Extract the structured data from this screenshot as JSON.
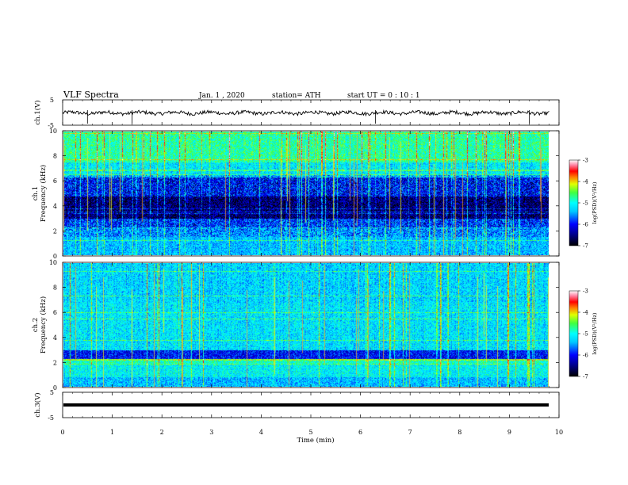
{
  "header": {
    "title": "VLF  Spectra",
    "date": "Jan.  1  , 2020",
    "station": "station= ATH",
    "start": "start  UT  =    0  : 10 : 1"
  },
  "chart_data": [
    {
      "type": "line",
      "panel": "ch1-waveform",
      "ylabel": "ch.1(V)",
      "yticks": [
        "5",
        "-5"
      ],
      "ylim": [
        -5,
        5
      ],
      "xlim": [
        0,
        10
      ],
      "data_extent_min": 9.8,
      "series": [
        {
          "values_note": "noise around 0 V, spikes near 0.5, 1.4, 6.3, 9.4 min",
          "mean": 0
        }
      ]
    },
    {
      "type": "heatmap",
      "panel": "ch1-spectrogram",
      "ylabel": "ch.1\nFrequency  (kHz)",
      "ylabel_lines": [
        "ch.1",
        "Frequency  (kHz)"
      ],
      "yticks": [
        "0",
        "2",
        "4",
        "6",
        "8",
        "10"
      ],
      "ylim": [
        0,
        10
      ],
      "xlim": [
        0,
        10
      ],
      "colorbar": {
        "label": "log(PSD)(V²/Hz)",
        "ticks": [
          "-3",
          "-4",
          "-5",
          "-6",
          "-7"
        ],
        "range": [
          -7,
          -3
        ]
      }
    },
    {
      "type": "heatmap",
      "panel": "ch2-spectrogram",
      "ylabel_lines": [
        "ch.2",
        "Frequency  (kHz)"
      ],
      "yticks": [
        "0",
        "2",
        "4",
        "6",
        "8",
        "10"
      ],
      "ylim": [
        0,
        10
      ],
      "xlim": [
        0,
        10
      ],
      "colorbar": {
        "label": "log(PSD)(V²/Hz)",
        "ticks": [
          "-3",
          "-4",
          "-5",
          "-6",
          "-7"
        ],
        "range": [
          -7,
          -3
        ]
      }
    },
    {
      "type": "line",
      "panel": "ch3-waveform",
      "ylabel": "ch.3(V)",
      "yticks": [
        "5",
        "-5"
      ],
      "ylim": [
        -5,
        5
      ],
      "xlim": [
        0,
        10
      ],
      "data_extent_min": 9.8,
      "series": [
        {
          "values_note": "flat thick line",
          "mean": 0
        }
      ]
    }
  ],
  "xaxis": {
    "label": "Time  (min)",
    "ticks": [
      "0",
      "1",
      "2",
      "3",
      "4",
      "5",
      "6",
      "7",
      "8",
      "9",
      "10"
    ]
  }
}
